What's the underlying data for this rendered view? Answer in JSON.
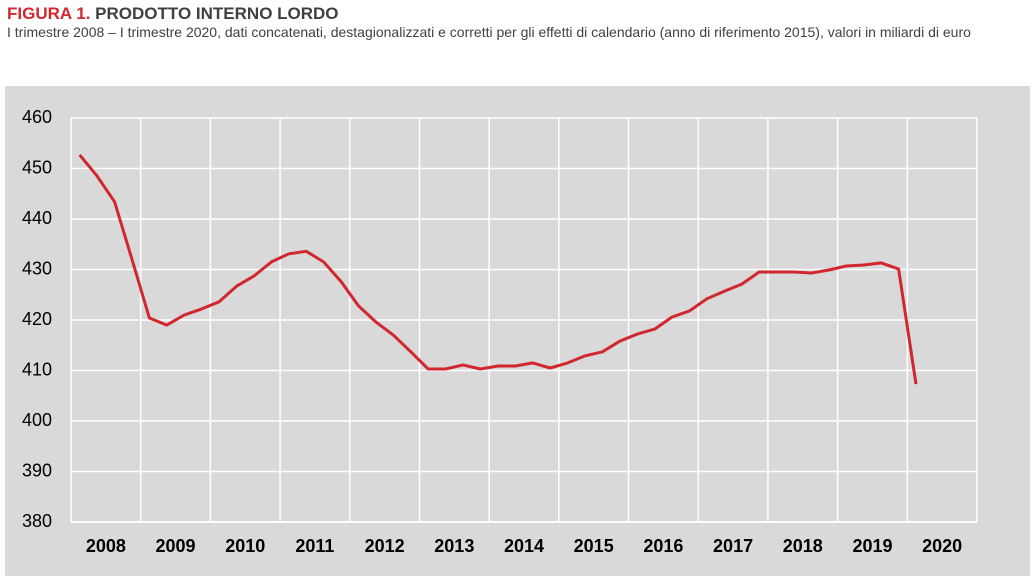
{
  "chart_data": {
    "type": "line",
    "title_label": "FIGURA 1.",
    "title": "PRODOTTO INTERNO LORDO",
    "subtitle": "I trimestre 2008 – I trimestre 2020, dati concatenati, destagionalizzati e corretti per gli effetti di calendario (anno di riferimento 2015), valori in miliardi di euro",
    "year_labels": [
      "2008",
      "2009",
      "2010",
      "2011",
      "2012",
      "2013",
      "2014",
      "2015",
      "2016",
      "2017",
      "2018",
      "2019",
      "2020"
    ],
    "values": [
      452.7,
      448.5,
      443.4,
      432,
      420.4,
      419,
      421,
      422.2,
      423.6,
      426.7,
      428.7,
      431.5,
      433.1,
      433.6,
      431.5,
      427.6,
      422.8,
      419.6,
      417,
      413.7,
      410.3,
      410.3,
      411.1,
      410.3,
      410.9,
      410.9,
      411.5,
      410.5,
      411.5,
      412.9,
      413.7,
      415.8,
      417.2,
      418.2,
      420.6,
      421.8,
      424.2,
      425.7,
      427.1,
      429.5,
      429.5,
      429.5,
      429.3,
      429.9,
      430.7,
      430.9,
      431.3,
      430.1,
      407.3
    ],
    "color": "#d0282e",
    "ylim": [
      380,
      460
    ],
    "yticks": [
      380,
      390,
      400,
      410,
      420,
      430,
      440,
      450,
      460
    ],
    "grid": true
  }
}
